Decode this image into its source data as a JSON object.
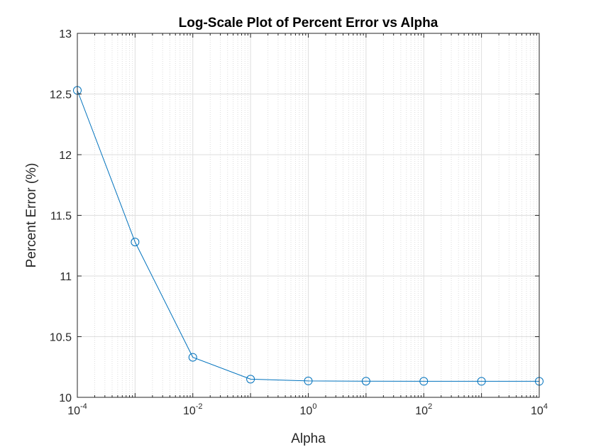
{
  "chart_data": {
    "type": "line",
    "title": "Log-Scale Plot of Percent Error vs Alpha",
    "xlabel": "Alpha",
    "ylabel": "Percent Error (%)",
    "xscale": "log",
    "xlim": [
      0.0001,
      10000
    ],
    "ylim": [
      10,
      13
    ],
    "grid": true,
    "minor_grid_x": true,
    "x_ticks": [
      {
        "base": "10",
        "exp": "-4"
      },
      {
        "base": "10",
        "exp": "-2"
      },
      {
        "base": "10",
        "exp": "0"
      },
      {
        "base": "10",
        "exp": "2"
      },
      {
        "base": "10",
        "exp": "4"
      }
    ],
    "y_ticks": [
      "10",
      "10.5",
      "11",
      "11.5",
      "12",
      "12.5",
      "13"
    ],
    "series": [
      {
        "color": "#0072BD",
        "marker": "circle",
        "x": [
          0.0001,
          0.001,
          0.01,
          0.1,
          1,
          10,
          100,
          1000,
          10000
        ],
        "y": [
          12.53,
          11.28,
          10.33,
          10.15,
          10.135,
          10.133,
          10.132,
          10.132,
          10.132
        ]
      }
    ]
  }
}
